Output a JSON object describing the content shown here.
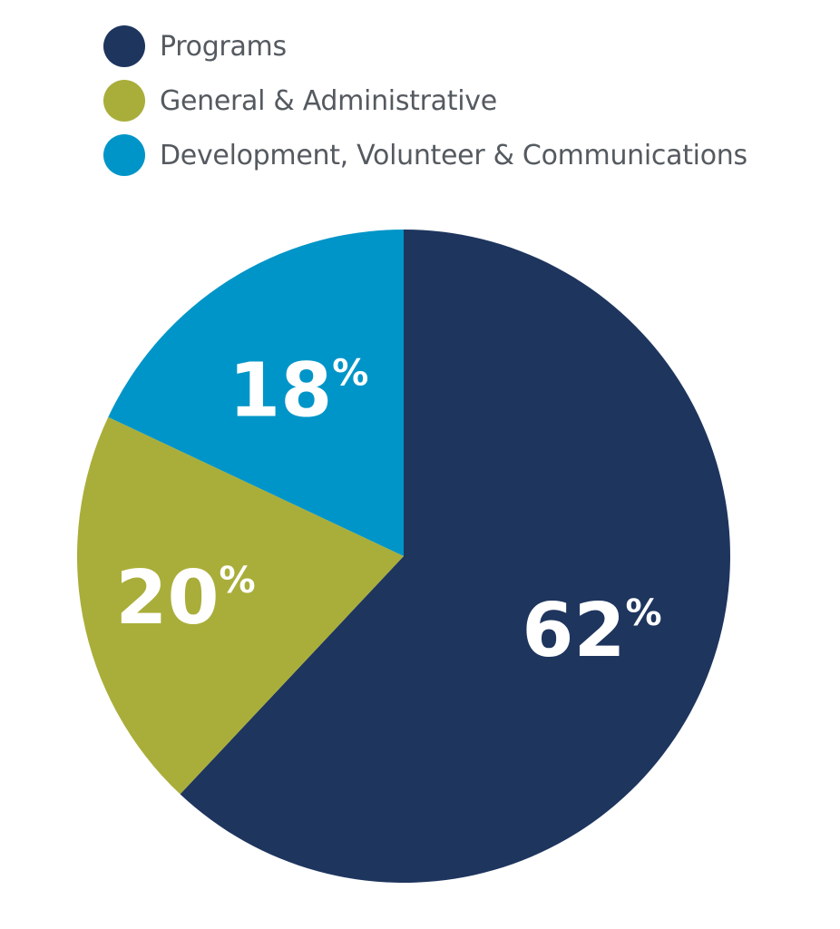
{
  "chart_data": {
    "type": "pie",
    "categories": [
      "Programs",
      "General & Administrative",
      "Development, Volunteer & Communications"
    ],
    "values": [
      62,
      20,
      18
    ],
    "colors": [
      "#1e355e",
      "#a9ae3a",
      "#0095c8"
    ],
    "data_labels": [
      "62",
      "20",
      "18"
    ],
    "unit": "%",
    "legend": "top-left",
    "start": "12 o'clock",
    "direction": "clockwise"
  }
}
